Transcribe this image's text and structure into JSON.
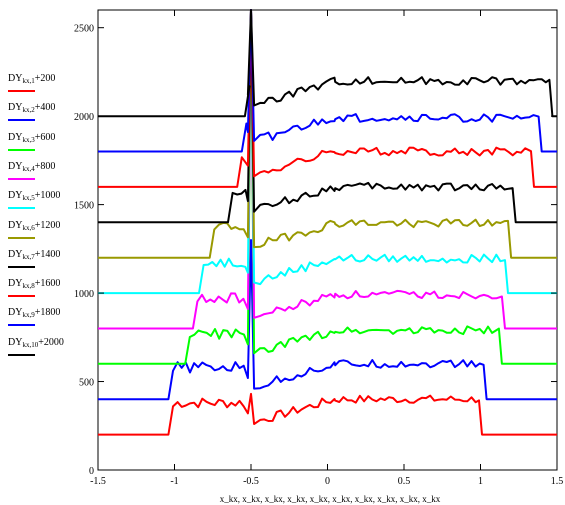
{
  "chart_data": {
    "type": "line",
    "title": "",
    "xlabel": "x_kx, x_kx, x_kx, x_kx, x_kx, x_kx, x_kx, x_kx, x_kx, x_kx",
    "ylabel": "",
    "xlim": [
      -1.5,
      1.5
    ],
    "ylim": [
      0,
      2600
    ],
    "grid": false,
    "legend_position": "left",
    "x_ticks": [
      -1.5,
      -1,
      -0.5,
      0,
      0.5,
      1,
      1.5
    ],
    "x_tick_labels": [
      "-1.5",
      "-1",
      "-0.5",
      "0",
      "0.5",
      "1",
      "1.5"
    ],
    "y_ticks": [
      0,
      500,
      1000,
      1500,
      2000,
      2500
    ],
    "y_tick_labels": [
      "0",
      "500",
      "1000",
      "1500",
      "2000",
      "2500"
    ],
    "series": [
      {
        "name": "DY_kx,1+200",
        "color": "#ff0000",
        "baseline": 200,
        "edges": [
          -1.03,
          0.99
        ],
        "plateau": 400,
        "peak": 430
      },
      {
        "name": "DY_kx,2+400",
        "color": "#0000ff",
        "baseline": 400,
        "edges": [
          -1.03,
          1.02
        ],
        "plateau": 600,
        "peak": 1300
      },
      {
        "name": "DY_kx,3+600",
        "color": "#00ff00",
        "baseline": 600,
        "edges": [
          -0.92,
          1.12
        ],
        "plateau": 790,
        "peak": 2600
      },
      {
        "name": "DY_kx,4+800",
        "color": "#ff00ff",
        "baseline": 800,
        "edges": [
          -0.87,
          1.14
        ],
        "plateau": 990,
        "peak": 2600
      },
      {
        "name": "DY_kx,5+1000",
        "color": "#00ffff",
        "baseline": 1000,
        "edges": [
          -0.83,
          1.16
        ],
        "plateau": 1195,
        "peak": 2600
      },
      {
        "name": "DY_kx,6+1200",
        "color": "#999900",
        "baseline": 1200,
        "edges": [
          -0.76,
          1.18
        ],
        "plateau": 1395,
        "peak": 2600
      },
      {
        "name": "DY_kx,7+1400",
        "color": "#000000",
        "baseline": 1400,
        "edges": [
          -0.64,
          1.21
        ],
        "plateau": 1600,
        "peak": 2600
      },
      {
        "name": "DY_kx,8+1600",
        "color": "#ff0000",
        "baseline": 1600,
        "edges": [
          -0.58,
          1.33
        ],
        "plateau": 1800,
        "peak": 2600
      },
      {
        "name": "DY_kx,9+1800",
        "color": "#0000ff",
        "baseline": 1800,
        "edges": [
          -0.55,
          1.38
        ],
        "plateau": 1990,
        "peak": 2600
      },
      {
        "name": "DY_kx,10+2000",
        "color": "#000000",
        "baseline": 2000,
        "edges": [
          -0.53,
          1.45
        ],
        "plateau": 2200,
        "peak": 2600
      }
    ]
  },
  "legend": [
    {
      "label": "DY",
      "sub": "kx,1",
      "suffix": "+200",
      "color": "#ff0000"
    },
    {
      "label": "DY",
      "sub": "kx,2",
      "suffix": "+400",
      "color": "#0000ff"
    },
    {
      "label": "DY",
      "sub": "kx,3",
      "suffix": "+600",
      "color": "#00ff00"
    },
    {
      "label": "DY",
      "sub": "kx,4",
      "suffix": "+800",
      "color": "#ff00ff"
    },
    {
      "label": "DY",
      "sub": "kx,5",
      "suffix": "+1000",
      "color": "#00ffff"
    },
    {
      "label": "DY",
      "sub": "kx,6",
      "suffix": "+1200",
      "color": "#999900"
    },
    {
      "label": "DY",
      "sub": "kx,7",
      "suffix": "+1400",
      "color": "#000000"
    },
    {
      "label": "DY",
      "sub": "kx,8",
      "suffix": "+1600",
      "color": "#ff0000"
    },
    {
      "label": "DY",
      "sub": "kx,9",
      "suffix": "+1800",
      "color": "#0000ff"
    },
    {
      "label": "DY",
      "sub": "kx,10",
      "suffix": "+2000",
      "color": "#000000"
    }
  ]
}
